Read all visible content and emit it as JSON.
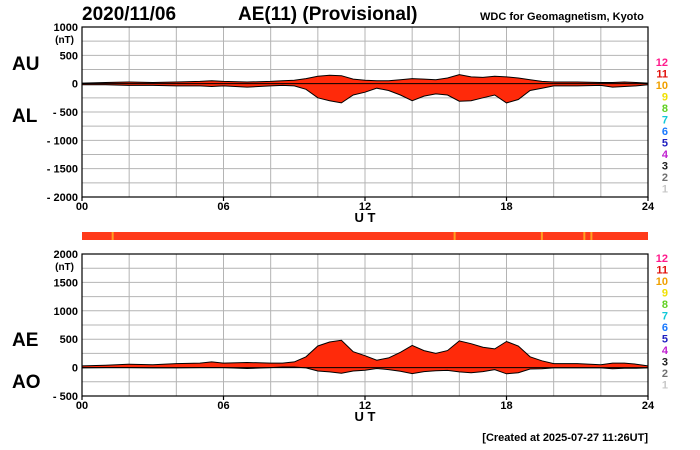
{
  "header": {
    "date": "2020/11/06",
    "title": "AE(11) (Provisional)",
    "source": "WDC for Geomagnetism, Kyoto"
  },
  "footer": {
    "created": "[Created at 2025-07-27 11:26UT]"
  },
  "colors": {
    "fill": "#ff2a0a",
    "outline": "#000000",
    "grid": "#b4b4b4",
    "quality_bar": "#ff3a1a",
    "quality_marker": "#ffa020"
  },
  "chart_data": [
    {
      "type": "area",
      "name": "AU/AL",
      "unit_label": "(nT)",
      "left_labels": [
        "AU",
        "AL"
      ],
      "xlabel": "U T",
      "xlim": [
        0,
        24
      ],
      "ylim": [
        -2000,
        1000
      ],
      "xticks": [
        0,
        6,
        12,
        18,
        24
      ],
      "xtick_labels": [
        "00",
        "06",
        "12",
        "18",
        "24"
      ],
      "yticks": [
        1000,
        500,
        0,
        -500,
        -1000,
        -1500,
        -2000
      ],
      "ytick_labels": [
        "1000",
        "500",
        "0",
        "- 500",
        "- 1000",
        "- 1500",
        "- 2000"
      ],
      "grid": true,
      "legend": [
        "12",
        "11",
        "10",
        "9",
        "8",
        "7",
        "6",
        "5",
        "4",
        "3",
        "2",
        "1"
      ],
      "series": [
        {
          "name": "AU",
          "x": [
            0,
            1,
            2,
            3,
            4,
            5,
            5.5,
            6,
            7,
            8,
            8.5,
            9,
            9.5,
            10,
            10.5,
            11,
            11.5,
            12,
            12.5,
            13,
            13.5,
            14,
            14.5,
            15,
            15.5,
            16,
            16.5,
            17,
            17.5,
            18,
            18.5,
            19,
            19.5,
            20,
            21,
            22,
            22.5,
            23,
            23.5,
            24
          ],
          "values": [
            10,
            20,
            30,
            20,
            30,
            40,
            50,
            40,
            30,
            40,
            50,
            60,
            90,
            130,
            150,
            140,
            80,
            60,
            50,
            50,
            70,
            90,
            80,
            70,
            100,
            160,
            120,
            110,
            130,
            120,
            100,
            70,
            40,
            30,
            30,
            20,
            20,
            30,
            20,
            10
          ]
        },
        {
          "name": "AL",
          "x": [
            0,
            1,
            2,
            3,
            4,
            5,
            5.5,
            6,
            7,
            8,
            8.5,
            9,
            9.5,
            10,
            10.5,
            11,
            11.5,
            12,
            12.5,
            13,
            13.5,
            14,
            14.5,
            15,
            15.5,
            16,
            16.5,
            17,
            17.5,
            18,
            18.5,
            19,
            19.5,
            20,
            21,
            22,
            22.5,
            23,
            23.5,
            24
          ],
          "values": [
            -20,
            -20,
            -30,
            -30,
            -40,
            -40,
            -50,
            -40,
            -60,
            -40,
            -30,
            -40,
            -100,
            -250,
            -300,
            -340,
            -200,
            -150,
            -80,
            -120,
            -200,
            -300,
            -220,
            -180,
            -200,
            -310,
            -300,
            -250,
            -200,
            -340,
            -280,
            -120,
            -80,
            -40,
            -40,
            -30,
            -60,
            -50,
            -40,
            -20
          ]
        }
      ]
    },
    {
      "type": "area",
      "name": "AE/AO",
      "unit_label": "(nT)",
      "left_labels": [
        "AE",
        "AO"
      ],
      "xlabel": "U T",
      "xlim": [
        0,
        24
      ],
      "ylim": [
        -500,
        2000
      ],
      "xticks": [
        0,
        6,
        12,
        18,
        24
      ],
      "xtick_labels": [
        "00",
        "06",
        "12",
        "18",
        "24"
      ],
      "yticks": [
        2000,
        1500,
        1000,
        500,
        0,
        -500
      ],
      "ytick_labels": [
        "2000",
        "1500",
        "1000",
        "500",
        "0",
        "- 500"
      ],
      "grid": true,
      "legend": [
        "12",
        "11",
        "10",
        "9",
        "8",
        "7",
        "6",
        "5",
        "4",
        "3",
        "2",
        "1"
      ],
      "quality_marks_hours": [
        1.3,
        15.8,
        19.5,
        21.3,
        21.6
      ],
      "series": [
        {
          "name": "AE",
          "x": [
            0,
            1,
            2,
            3,
            4,
            5,
            5.5,
            6,
            7,
            8,
            8.5,
            9,
            9.5,
            10,
            10.5,
            11,
            11.5,
            12,
            12.5,
            13,
            13.5,
            14,
            14.5,
            15,
            15.5,
            16,
            16.5,
            17,
            17.5,
            18,
            18.5,
            19,
            19.5,
            20,
            21,
            22,
            22.5,
            23,
            23.5,
            24
          ],
          "values": [
            30,
            40,
            60,
            50,
            70,
            80,
            100,
            80,
            90,
            80,
            80,
            100,
            190,
            380,
            450,
            480,
            280,
            210,
            130,
            170,
            270,
            390,
            300,
            250,
            300,
            470,
            420,
            360,
            330,
            460,
            380,
            190,
            120,
            70,
            70,
            50,
            80,
            80,
            60,
            30
          ]
        },
        {
          "name": "AO",
          "x": [
            0,
            1,
            2,
            3,
            4,
            5,
            5.5,
            6,
            7,
            8,
            8.5,
            9,
            9.5,
            10,
            10.5,
            11,
            11.5,
            12,
            12.5,
            13,
            13.5,
            14,
            14.5,
            15,
            15.5,
            16,
            16.5,
            17,
            17.5,
            18,
            18.5,
            19,
            19.5,
            20,
            21,
            22,
            22.5,
            23,
            23.5,
            24
          ],
          "values": [
            -5,
            0,
            0,
            -5,
            -5,
            0,
            0,
            0,
            -15,
            0,
            10,
            10,
            -5,
            -60,
            -75,
            -100,
            -60,
            -45,
            -15,
            -35,
            -65,
            -105,
            -70,
            -55,
            -50,
            -75,
            -90,
            -70,
            -35,
            -110,
            -90,
            -25,
            -20,
            -5,
            -5,
            -5,
            -20,
            -10,
            -10,
            -5
          ]
        }
      ]
    }
  ]
}
